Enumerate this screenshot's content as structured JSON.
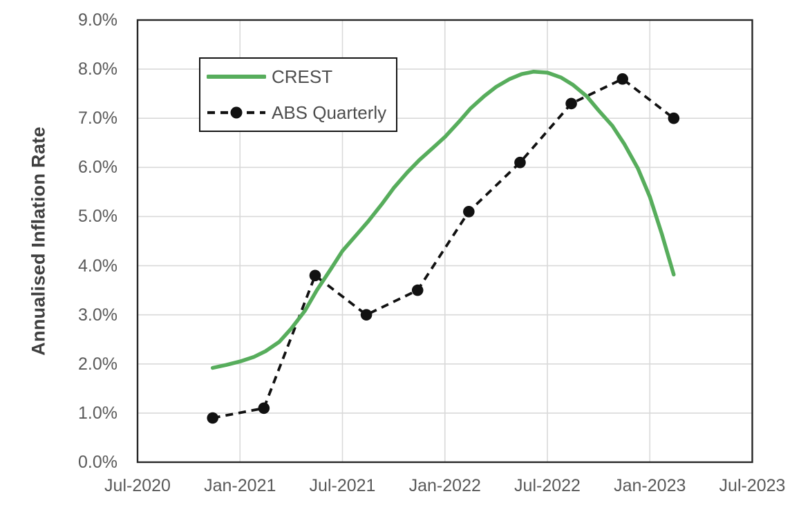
{
  "colors": {
    "background": "#ffffff",
    "grid": "#d9d9d9",
    "frame": "#262626",
    "tick_text": "#595959",
    "axis_title_text": "#3f3f3f",
    "crest_green": "#57ad5c",
    "abs_black": "#111111",
    "legend_border": "#141414"
  },
  "chart_data": {
    "type": "line",
    "title": "",
    "xlabel": "",
    "ylabel": "Annualised Inflation Rate",
    "grid": true,
    "legend_position": "upper-left-inside",
    "ylim": [
      0,
      9
    ],
    "y_unit": "%",
    "x_range_months_from_jul2020": [
      0,
      36
    ],
    "x_ticks": {
      "labels": [
        "Jul-2020",
        "Jan-2021",
        "Jul-2021",
        "Jan-2022",
        "Jul-2022",
        "Jan-2023",
        "Jul-2023"
      ],
      "months": [
        0,
        6,
        12,
        18,
        24,
        30,
        36
      ]
    },
    "y_ticks": {
      "labels": [
        "0.0%",
        "1.0%",
        "2.0%",
        "3.0%",
        "4.0%",
        "5.0%",
        "6.0%",
        "7.0%",
        "8.0%",
        "9.0%"
      ],
      "values": [
        0,
        1,
        2,
        3,
        4,
        5,
        6,
        7,
        8,
        9
      ]
    },
    "series": [
      {
        "name": "CREST",
        "style": "smooth-solid-line",
        "color": "#57ad5c",
        "stroke_width": 5.5,
        "points_months_value": [
          [
            4.4,
            1.92
          ],
          [
            5.2,
            1.98
          ],
          [
            6,
            2.05
          ],
          [
            6.8,
            2.14
          ],
          [
            7.5,
            2.26
          ],
          [
            8.3,
            2.45
          ],
          [
            9,
            2.72
          ],
          [
            9.8,
            3.08
          ],
          [
            10.5,
            3.5
          ],
          [
            11.3,
            3.92
          ],
          [
            12,
            4.3
          ],
          [
            12.8,
            4.62
          ],
          [
            13.5,
            4.9
          ],
          [
            14.3,
            5.25
          ],
          [
            15,
            5.58
          ],
          [
            15.8,
            5.9
          ],
          [
            16.5,
            6.15
          ],
          [
            17.3,
            6.4
          ],
          [
            18,
            6.62
          ],
          [
            18.8,
            6.92
          ],
          [
            19.5,
            7.2
          ],
          [
            20.3,
            7.45
          ],
          [
            21,
            7.64
          ],
          [
            21.8,
            7.8
          ],
          [
            22.5,
            7.9
          ],
          [
            23.2,
            7.95
          ],
          [
            24,
            7.93
          ],
          [
            24.8,
            7.83
          ],
          [
            25.5,
            7.68
          ],
          [
            26.3,
            7.45
          ],
          [
            27,
            7.16
          ],
          [
            27.8,
            6.85
          ],
          [
            28.5,
            6.48
          ],
          [
            29.3,
            5.98
          ],
          [
            30,
            5.4
          ],
          [
            30.7,
            4.65
          ],
          [
            31.4,
            3.82
          ]
        ]
      },
      {
        "name": "ABS Quarterly",
        "style": "dashed-line-circle-markers",
        "color": "#111111",
        "stroke_width": 3.8,
        "dash_pattern": [
          11,
          8
        ],
        "marker_radius": 8.3,
        "quarters": [
          "Dec-2020",
          "Mar-2021",
          "Jun-2021",
          "Sep-2021",
          "Dec-2021",
          "Mar-2022",
          "Jun-2022",
          "Sep-2022",
          "Dec-2022",
          "Mar-2023"
        ],
        "points_months_value": [
          [
            4.4,
            0.9
          ],
          [
            7.4,
            1.1
          ],
          [
            10.4,
            3.8
          ],
          [
            13.4,
            3.0
          ],
          [
            16.4,
            3.5
          ],
          [
            19.4,
            5.1
          ],
          [
            22.4,
            6.1
          ],
          [
            25.4,
            7.3
          ],
          [
            28.4,
            7.8
          ],
          [
            31.4,
            7.0
          ]
        ]
      }
    ]
  }
}
